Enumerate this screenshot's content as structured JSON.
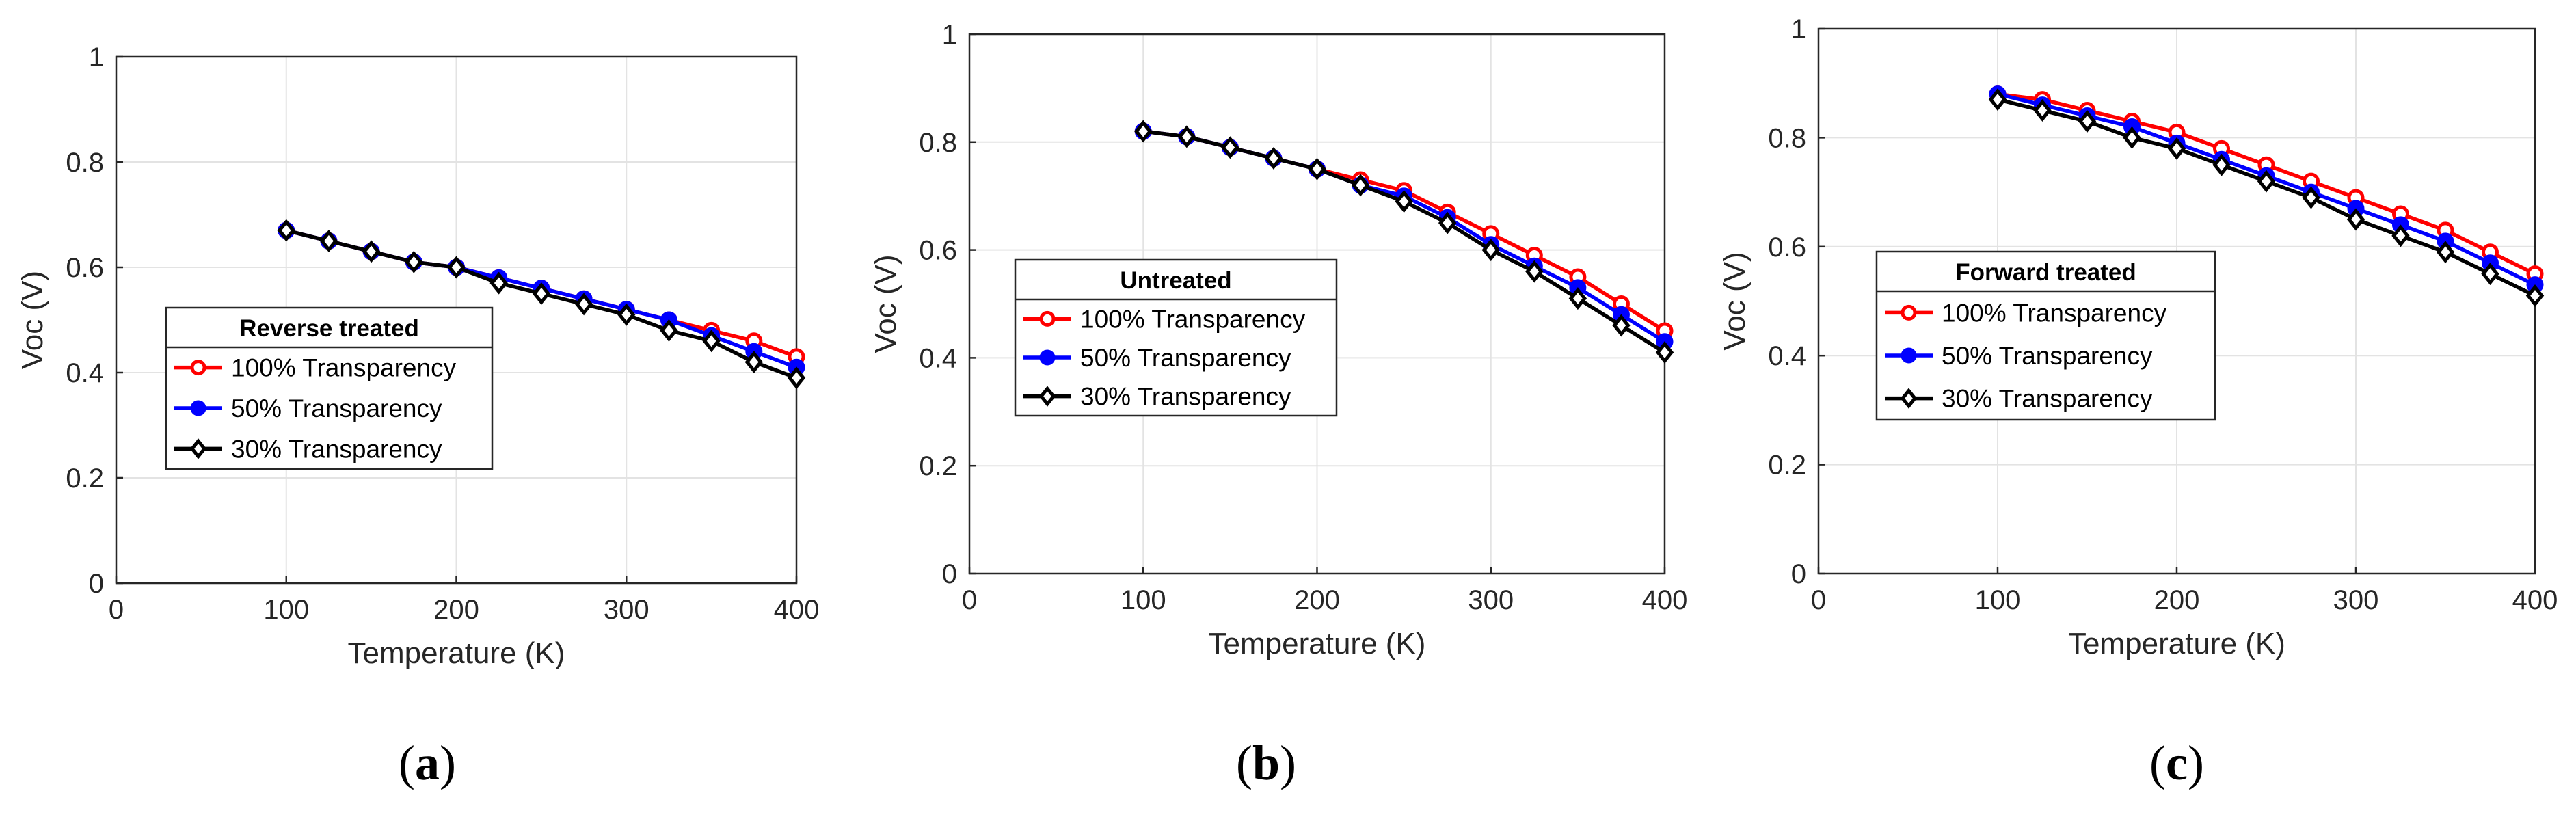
{
  "chart_data": [
    {
      "type": "line",
      "panel_label": "a",
      "xlabel": "Temperature (K)",
      "ylabel": "Voc (V)",
      "xlim": [
        0,
        400
      ],
      "ylim": [
        0,
        1
      ],
      "xticks": [
        0,
        100,
        200,
        300,
        400
      ],
      "yticks": [
        0,
        0.2,
        0.4,
        0.6,
        0.8,
        1
      ],
      "grid": true,
      "legend": {
        "title": "Reverse treated",
        "placement": "center-left"
      },
      "x": [
        100,
        125,
        150,
        175,
        200,
        225,
        250,
        275,
        300,
        325,
        350,
        375,
        400
      ],
      "series": [
        {
          "name": "100% Transparency",
          "color": "#ff0000",
          "marker": "circle-open",
          "values": [
            0.67,
            0.65,
            0.63,
            0.61,
            0.6,
            0.58,
            0.56,
            0.54,
            0.52,
            0.5,
            0.48,
            0.46,
            0.43
          ]
        },
        {
          "name": "50% Transparency",
          "color": "#0000ff",
          "marker": "circle-filled",
          "values": [
            0.67,
            0.65,
            0.63,
            0.61,
            0.6,
            0.58,
            0.56,
            0.54,
            0.52,
            0.5,
            0.47,
            0.44,
            0.41
          ]
        },
        {
          "name": "30% Transparency",
          "color": "#000000",
          "marker": "diamond-open",
          "values": [
            0.67,
            0.65,
            0.63,
            0.61,
            0.6,
            0.57,
            0.55,
            0.53,
            0.51,
            0.48,
            0.46,
            0.42,
            0.39
          ]
        }
      ]
    },
    {
      "type": "line",
      "panel_label": "b",
      "xlabel": "Temperature (K)",
      "ylabel": "Voc (V)",
      "xlim": [
        0,
        400
      ],
      "ylim": [
        0,
        1
      ],
      "xticks": [
        0,
        100,
        200,
        300,
        400
      ],
      "yticks": [
        0,
        0.2,
        0.4,
        0.6,
        0.8,
        1
      ],
      "grid": true,
      "legend": {
        "title": "Untreated",
        "placement": "center-left"
      },
      "x": [
        100,
        125,
        150,
        175,
        200,
        225,
        250,
        275,
        300,
        325,
        350,
        375,
        400
      ],
      "series": [
        {
          "name": "100% Transparency",
          "color": "#ff0000",
          "marker": "circle-open",
          "values": [
            0.82,
            0.81,
            0.79,
            0.77,
            0.75,
            0.73,
            0.71,
            0.67,
            0.63,
            0.59,
            0.55,
            0.5,
            0.45
          ]
        },
        {
          "name": "50% Transparency",
          "color": "#0000ff",
          "marker": "circle-filled",
          "values": [
            0.82,
            0.81,
            0.79,
            0.77,
            0.75,
            0.72,
            0.7,
            0.66,
            0.61,
            0.57,
            0.53,
            0.48,
            0.43
          ]
        },
        {
          "name": "30% Transparency",
          "color": "#000000",
          "marker": "diamond-open",
          "values": [
            0.82,
            0.81,
            0.79,
            0.77,
            0.75,
            0.72,
            0.69,
            0.65,
            0.6,
            0.56,
            0.51,
            0.46,
            0.41
          ]
        }
      ]
    },
    {
      "type": "line",
      "panel_label": "c",
      "xlabel": "Temperature (K)",
      "ylabel": "Voc (V)",
      "xlim": [
        0,
        400
      ],
      "ylim": [
        0,
        1
      ],
      "xticks": [
        0,
        100,
        200,
        300,
        400
      ],
      "yticks": [
        0,
        0.2,
        0.4,
        0.6,
        0.8,
        1
      ],
      "grid": true,
      "legend": {
        "title": "Forward treated",
        "placement": "center-left"
      },
      "x": [
        100,
        125,
        150,
        175,
        200,
        225,
        250,
        275,
        300,
        325,
        350,
        375,
        400
      ],
      "series": [
        {
          "name": "100% Transparency",
          "color": "#ff0000",
          "marker": "circle-open",
          "values": [
            0.88,
            0.87,
            0.85,
            0.83,
            0.81,
            0.78,
            0.75,
            0.72,
            0.69,
            0.66,
            0.63,
            0.59,
            0.55
          ]
        },
        {
          "name": "50% Transparency",
          "color": "#0000ff",
          "marker": "circle-filled",
          "values": [
            0.88,
            0.86,
            0.84,
            0.82,
            0.79,
            0.76,
            0.73,
            0.7,
            0.67,
            0.64,
            0.61,
            0.57,
            0.53
          ]
        },
        {
          "name": "30% Transparency",
          "color": "#000000",
          "marker": "diamond-open",
          "values": [
            0.87,
            0.85,
            0.83,
            0.8,
            0.78,
            0.75,
            0.72,
            0.69,
            0.65,
            0.62,
            0.59,
            0.55,
            0.51
          ]
        }
      ]
    }
  ]
}
